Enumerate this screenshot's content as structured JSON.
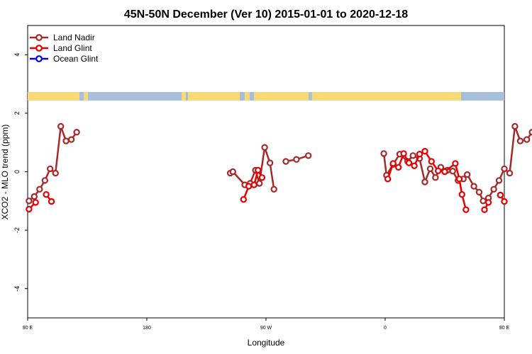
{
  "chart_data": {
    "type": "line",
    "title": "45N-50N December (Ver 10)   2015-01-01 to 2020-12-18",
    "xlabel": "Longitude",
    "ylabel": "XCO2 - MLO trend (ppm)",
    "xlim": [
      90,
      450
    ],
    "ylim": [
      -5,
      5
    ],
    "x_ticks": [
      {
        "value": 90,
        "label": "90 E"
      },
      {
        "value": 180,
        "label": "180"
      },
      {
        "value": 270,
        "label": "90 W"
      },
      {
        "value": 360,
        "label": "0"
      },
      {
        "value": 450,
        "label": "90 E"
      },
      {
        "value": 540,
        "label": "180"
      }
    ],
    "y_ticks": [
      {
        "value": -4,
        "label": "-4"
      },
      {
        "value": -2,
        "label": "-2"
      },
      {
        "value": 0,
        "label": "0"
      },
      {
        "value": 2,
        "label": "2"
      },
      {
        "value": 4,
        "label": "4"
      }
    ],
    "legend_position": "top-left",
    "grid": false,
    "land_strip_colors": {
      "land": "#F7D97A",
      "ocean": "#A8BEDD"
    },
    "series": [
      {
        "name": "Land Nadir",
        "color": "#A52A2A",
        "segments": [
          [
            [
              91,
              -1.0
            ],
            [
              95,
              -0.85
            ],
            [
              99,
              -0.6
            ],
            [
              103,
              -0.3
            ],
            [
              107,
              0.1
            ],
            [
              111,
              -0.05
            ],
            [
              115,
              1.55
            ],
            [
              119,
              1.05
            ],
            [
              123,
              1.1
            ],
            [
              127,
              1.35
            ]
          ],
          [
            [
              243,
              -0.05
            ],
            [
              245,
              0.0
            ],
            [
              254,
              -0.45
            ],
            [
              258,
              -0.4
            ],
            [
              262,
              0.05
            ],
            [
              265,
              -0.4
            ],
            [
              269,
              0.83
            ],
            [
              273,
              0.3
            ],
            [
              276,
              -0.6
            ]
          ],
          [
            [
              285,
              0.35
            ],
            [
              293,
              0.42
            ],
            [
              302,
              0.55
            ]
          ],
          [
            [
              359,
              0.62
            ],
            [
              361,
              -0.12
            ],
            [
              366,
              0.25
            ],
            [
              371,
              0.6
            ],
            [
              377,
              0.35
            ],
            [
              381,
              0.55
            ],
            [
              386,
              0.45
            ],
            [
              390,
              -0.35
            ],
            [
              394,
              0.1
            ],
            [
              398,
              -0.2
            ],
            [
              402,
              0.15
            ],
            [
              407,
              0.05
            ],
            [
              411,
              0.02
            ],
            [
              415,
              -0.3
            ],
            [
              419,
              -0.25
            ],
            [
              422,
              -0.1
            ],
            [
              427,
              -0.5
            ],
            [
              431,
              -0.7
            ],
            [
              434,
              -1.0
            ],
            [
              438,
              -0.9
            ],
            [
              442,
              -0.6
            ],
            [
              446,
              -0.3
            ],
            [
              450,
              0.1
            ],
            [
              454,
              -0.05
            ],
            [
              458,
              1.55
            ],
            [
              462,
              1.05
            ],
            [
              467,
              1.1
            ],
            [
              471,
              1.35
            ]
          ]
        ]
      },
      {
        "name": "Land Glint",
        "color": "#E80000",
        "segments": [
          [
            [
              91,
              -1.28
            ],
            [
              96,
              -1.05
            ]
          ],
          [
            [
              104,
              -0.78
            ],
            [
              108,
              -1.02
            ]
          ],
          [
            [
              253,
              -0.95
            ],
            [
              257,
              -0.5
            ],
            [
              261,
              -0.45
            ],
            [
              264,
              0.05
            ],
            [
              267,
              -0.2
            ]
          ],
          [
            [
              362,
              -0.25
            ],
            [
              366,
              0.28
            ],
            [
              370,
              0.15
            ],
            [
              374,
              0.62
            ],
            [
              378,
              0.3
            ],
            [
              382,
              0.2
            ],
            [
              386,
              0.6
            ],
            [
              390,
              0.7
            ],
            [
              395,
              0.35
            ],
            [
              400,
              0.03
            ],
            [
              405,
              0.0
            ],
            [
              413,
              0.28
            ],
            [
              416,
              -0.25
            ],
            [
              418,
              -0.78
            ],
            [
              421,
              -1.3
            ]
          ],
          [
            [
              435,
              -1.3
            ],
            [
              438,
              -1.05
            ]
          ],
          [
            [
              447,
              -0.8
            ],
            [
              450,
              -1.02
            ]
          ]
        ]
      },
      {
        "name": "Ocean Glint",
        "color": "#0000E0",
        "segments": []
      }
    ]
  }
}
